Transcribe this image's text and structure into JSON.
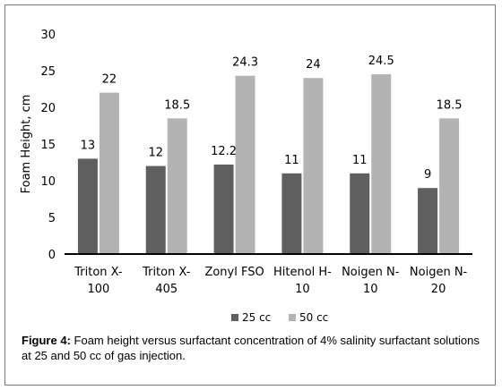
{
  "chart_data": {
    "type": "bar",
    "categories": [
      [
        "Triton X-",
        "100"
      ],
      [
        "Triton X-",
        "405"
      ],
      [
        "Zonyl FSO"
      ],
      [
        "Hitenol H-",
        "10"
      ],
      [
        "Noigen N-",
        "10"
      ],
      [
        "Noigen N-",
        "20"
      ]
    ],
    "series": [
      {
        "name": "25 cc",
        "values": [
          13,
          12,
          12.2,
          11,
          11,
          9
        ],
        "labels": [
          "13",
          "12",
          "12.2",
          "11",
          "11",
          "9"
        ],
        "color": "#5f5f5f"
      },
      {
        "name": "50 cc",
        "values": [
          22,
          18.5,
          24.3,
          24,
          24.5,
          18.5
        ],
        "labels": [
          "22",
          "18.5",
          "24.3",
          "24",
          "24.5",
          "18.5"
        ],
        "color": "#b3b3b3"
      }
    ],
    "ylabel": "Foam Height, cm",
    "xlabel": "",
    "ylim": [
      0,
      30
    ],
    "yticks": [
      0,
      5,
      10,
      15,
      20,
      25,
      30
    ],
    "grid": false,
    "legend_position": "bottom"
  },
  "caption": {
    "figure_label": "Figure 4:",
    "text": "Foam height versus surfactant concentration of 4% salinity surfactant solutions at 25 and 50 cc of gas injection."
  }
}
